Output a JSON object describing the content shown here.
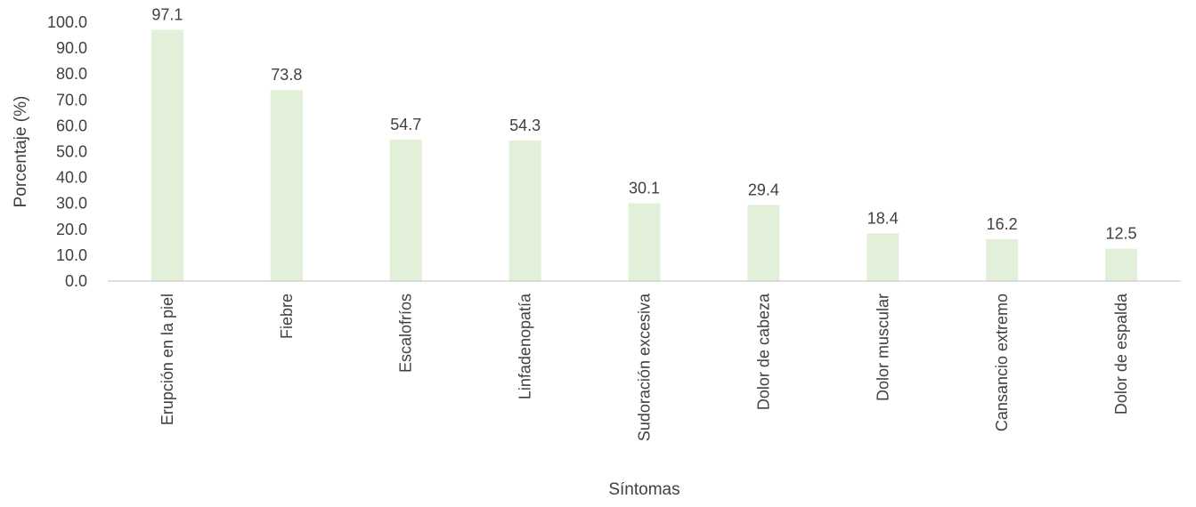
{
  "chart_data": {
    "type": "bar",
    "title": "",
    "xlabel": "Síntomas",
    "ylabel": "Porcentaje (%)",
    "categories": [
      "Erupción en la piel",
      "Fiebre",
      "Escalofríos",
      "Linfadenopatía",
      "Sudoración excesiva",
      "Dolor de cabeza",
      "Dolor muscular",
      "Cansancio extremo",
      "Dolor de espalda"
    ],
    "values": [
      97.1,
      73.8,
      54.7,
      54.3,
      30.1,
      29.4,
      18.4,
      16.2,
      12.5
    ],
    "data_labels": [
      "97.1",
      "73.8",
      "54.7",
      "54.3",
      "30.1",
      "29.4",
      "18.4",
      "16.2",
      "12.5"
    ],
    "ylim": [
      0,
      100
    ],
    "yticks": [
      0,
      10,
      20,
      30,
      40,
      50,
      60,
      70,
      80,
      90,
      100
    ],
    "ytick_labels": [
      "0.0",
      "10.0",
      "20.0",
      "30.0",
      "40.0",
      "50.0",
      "60.0",
      "70.0",
      "80.0",
      "90.0",
      "100.0"
    ],
    "grid": false,
    "legend": "none",
    "bar_color": "#e2efd9",
    "axis_color": "#bfbfbf",
    "text_color": "#404040"
  }
}
